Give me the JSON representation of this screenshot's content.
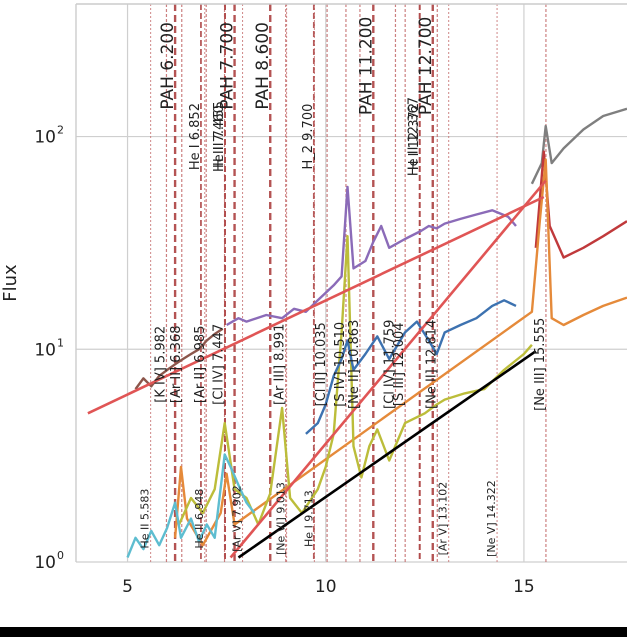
{
  "chart_data": {
    "type": "line",
    "title": "",
    "xlabel": "",
    "ylabel": "Flux",
    "yscale": "log",
    "xlim": [
      3.7,
      17.6
    ],
    "ylim": [
      1,
      420
    ],
    "grid": true,
    "x_ticks": [
      5,
      10,
      15
    ],
    "x_tick_labels": [
      "5",
      "10",
      "15"
    ],
    "y_ticks": [
      1,
      10,
      100
    ],
    "y_tick_labels": [
      "10",
      "10",
      "10"
    ],
    "y_tick_exponents": [
      "0",
      "1",
      "2"
    ],
    "colors": {
      "gray": "#7f7f7f",
      "red": "#c0393b",
      "orange": "#e58a3a",
      "purple": "#8b6bb8",
      "olive": "#bcbd3a",
      "blue": "#3d72b0",
      "cyan": "#5ebdd0",
      "brown": "#8c564b",
      "fit": "#e05555",
      "black": "#000000",
      "pah_line": "#b04a4a",
      "fine_line": "#c46a6a"
    },
    "series": [
      {
        "key": "gray",
        "color_key": "gray",
        "points": [
          [
            15.2,
            60
          ],
          [
            15.45,
            75
          ],
          [
            15.55,
            112
          ],
          [
            15.7,
            75
          ],
          [
            16.0,
            88
          ],
          [
            16.5,
            108
          ],
          [
            17.0,
            125
          ],
          [
            17.6,
            135
          ]
        ]
      },
      {
        "key": "red",
        "color_key": "red",
        "points": [
          [
            15.3,
            30
          ],
          [
            15.5,
            85
          ],
          [
            15.65,
            38
          ],
          [
            16.0,
            27
          ],
          [
            16.5,
            30
          ],
          [
            17.0,
            34
          ],
          [
            17.6,
            40
          ]
        ]
      },
      {
        "key": "orange",
        "color_key": "orange",
        "points": [
          [
            6.2,
            1.3
          ],
          [
            6.35,
            2.8
          ],
          [
            6.5,
            1.6
          ],
          [
            6.9,
            1.2
          ],
          [
            7.35,
            1.7
          ],
          [
            7.5,
            2.6
          ],
          [
            7.7,
            1.5
          ],
          [
            15.2,
            15
          ],
          [
            15.4,
            40
          ],
          [
            15.55,
            78
          ],
          [
            15.7,
            14
          ],
          [
            16.0,
            13
          ],
          [
            16.5,
            14.5
          ],
          [
            17.0,
            16
          ],
          [
            17.6,
            17.5
          ]
        ]
      },
      {
        "key": "purple",
        "color_key": "purple",
        "points": [
          [
            7.5,
            13
          ],
          [
            7.8,
            14
          ],
          [
            8.0,
            13.5
          ],
          [
            8.5,
            14.5
          ],
          [
            8.9,
            14
          ],
          [
            9.2,
            15.5
          ],
          [
            9.5,
            15
          ],
          [
            9.8,
            17
          ],
          [
            10.2,
            20
          ],
          [
            10.4,
            22
          ],
          [
            10.55,
            58
          ],
          [
            10.7,
            24
          ],
          [
            11.0,
            26
          ],
          [
            11.2,
            32
          ],
          [
            11.4,
            38
          ],
          [
            11.6,
            30
          ],
          [
            12.0,
            33
          ],
          [
            12.4,
            36
          ],
          [
            12.6,
            38
          ],
          [
            12.8,
            37
          ],
          [
            13.0,
            39
          ],
          [
            13.4,
            41
          ],
          [
            13.8,
            43
          ],
          [
            14.2,
            45
          ],
          [
            14.6,
            42
          ],
          [
            14.8,
            38
          ]
        ]
      },
      {
        "key": "olive",
        "color_key": "olive",
        "points": [
          [
            6.3,
            1.5
          ],
          [
            6.6,
            2.0
          ],
          [
            6.9,
            1.7
          ],
          [
            7.2,
            2.2
          ],
          [
            7.45,
            4.5
          ],
          [
            7.7,
            2.2
          ],
          [
            8.0,
            2.0
          ],
          [
            8.3,
            1.5
          ],
          [
            8.6,
            2.1
          ],
          [
            8.9,
            5.3
          ],
          [
            9.1,
            2.0
          ],
          [
            9.4,
            1.7
          ],
          [
            9.8,
            2.2
          ],
          [
            10.0,
            2.8
          ],
          [
            10.2,
            4.0
          ],
          [
            10.4,
            12
          ],
          [
            10.55,
            34
          ],
          [
            10.7,
            3.5
          ],
          [
            10.9,
            2.5
          ],
          [
            11.1,
            3.5
          ],
          [
            11.3,
            4.2
          ],
          [
            11.6,
            3.0
          ],
          [
            12.0,
            4.5
          ],
          [
            12.5,
            5.0
          ],
          [
            12.8,
            5.5
          ],
          [
            13.0,
            5.8
          ],
          [
            13.5,
            6.2
          ],
          [
            14.0,
            6.5
          ],
          [
            14.5,
            8.0
          ],
          [
            15.0,
            9.5
          ],
          [
            15.2,
            10.5
          ]
        ]
      },
      {
        "key": "blue",
        "color_key": "blue",
        "points": [
          [
            9.5,
            4.0
          ],
          [
            9.8,
            4.5
          ],
          [
            10.0,
            5.5
          ],
          [
            10.2,
            7.5
          ],
          [
            10.4,
            9.0
          ],
          [
            10.55,
            11
          ],
          [
            10.7,
            8.0
          ],
          [
            11.0,
            9.5
          ],
          [
            11.3,
            11.5
          ],
          [
            11.6,
            9.0
          ],
          [
            12.0,
            12
          ],
          [
            12.3,
            13.5
          ],
          [
            12.6,
            11
          ],
          [
            12.8,
            9.5
          ],
          [
            13.0,
            12
          ],
          [
            13.4,
            13
          ],
          [
            13.8,
            14
          ],
          [
            14.2,
            16
          ],
          [
            14.5,
            17
          ],
          [
            14.8,
            16
          ]
        ]
      },
      {
        "key": "cyan",
        "color_key": "cyan",
        "points": [
          [
            5.0,
            1.05
          ],
          [
            5.2,
            1.3
          ],
          [
            5.4,
            1.15
          ],
          [
            5.6,
            1.4
          ],
          [
            5.8,
            1.2
          ],
          [
            6.0,
            1.45
          ],
          [
            6.2,
            1.9
          ],
          [
            6.35,
            1.3
          ],
          [
            6.6,
            1.6
          ],
          [
            6.8,
            1.25
          ],
          [
            7.0,
            1.5
          ],
          [
            7.2,
            1.3
          ],
          [
            7.45,
            3.2
          ],
          [
            7.6,
            2.8
          ],
          [
            7.8,
            2.3
          ],
          [
            8.0,
            1.9
          ],
          [
            8.2,
            1.7
          ]
        ]
      },
      {
        "key": "brown",
        "color_key": "brown",
        "points": [
          [
            5.2,
            6.5
          ],
          [
            5.4,
            7.3
          ],
          [
            5.6,
            6.7
          ],
          [
            5.8,
            7.5
          ],
          [
            6.0,
            8.0
          ],
          [
            6.2,
            8.5
          ],
          [
            6.4,
            9.0
          ],
          [
            6.6,
            9.5
          ],
          [
            6.8,
            10
          ],
          [
            7.0,
            11
          ],
          [
            7.2,
            11.8
          ],
          [
            7.4,
            12.5
          ]
        ]
      }
    ],
    "fits": [
      {
        "key": "fit-upper",
        "color_key": "fit",
        "points": [
          [
            4.0,
            5.0
          ],
          [
            15.5,
            52
          ]
        ]
      },
      {
        "key": "fit-lower",
        "color_key": "fit",
        "points": [
          [
            7.6,
            1.05
          ],
          [
            15.55,
            62
          ]
        ]
      },
      {
        "key": "fit-black",
        "color_key": "black",
        "points": [
          [
            7.8,
            1.05
          ],
          [
            15.3,
            9.8
          ]
        ]
      }
    ],
    "pah_lines": [
      {
        "x": 6.2,
        "label": "PAH 6.200",
        "y": 215
      },
      {
        "x": 7.7,
        "label": "PAH 7.700",
        "y": 215
      },
      {
        "x": 8.6,
        "label": "PAH 8.600",
        "y": 215
      },
      {
        "x": 11.2,
        "label": "PAH 11.200",
        "y": 215
      },
      {
        "x": 12.7,
        "label": "PAH 12.700",
        "y": 215
      }
    ],
    "mid_lines": [
      {
        "x": 6.852,
        "label": "He I 6.852",
        "y": 100
      },
      {
        "x": 7.46,
        "label": "H II 7.460",
        "y": 100
      },
      {
        "x": 7.46,
        "label": "He II 7.455",
        "y": 100
      },
      {
        "x": 9.7,
        "label": "H_2 9.700",
        "y": 100
      },
      {
        "x": 12.37,
        "label": "He II 12.367",
        "y": 100
      },
      {
        "x": 12.372,
        "label": "H I 12.372",
        "y": 100
      }
    ],
    "low_lines": [
      {
        "x": 5.982,
        "label": "[K IV] 5.982",
        "y": 8.5
      },
      {
        "x": 6.368,
        "label": "[Ar II] 6.368",
        "y": 8.5
      },
      {
        "x": 6.985,
        "label": "[Ar II] 6.985",
        "y": 8.5
      },
      {
        "x": 7.447,
        "label": "[Cl IV] 7.447",
        "y": 8.5
      },
      {
        "x": 8.991,
        "label": "[Ar III] 8.991",
        "y": 8.5
      },
      {
        "x": 10.035,
        "label": "[Cl II] 10.035",
        "y": 8.5
      },
      {
        "x": 10.51,
        "label": "[S IV] 10.510",
        "y": 8.5
      },
      {
        "x": 10.863,
        "label": "[Ne II] 10.863",
        "y": 8.5
      },
      {
        "x": 11.759,
        "label": "[Cl IV] 11.759",
        "y": 8.5
      },
      {
        "x": 12.004,
        "label": "[S III] 12.004",
        "y": 8.5
      },
      {
        "x": 12.814,
        "label": "[Ne II] 12.814",
        "y": 8.5
      },
      {
        "x": 15.555,
        "label": "[Ne III] 15.555",
        "y": 8.5
      }
    ],
    "faint_lines": [
      {
        "x": 5.583,
        "label": "He II 5.583",
        "y": 1.6
      },
      {
        "x": 6.948,
        "label": "He II 6.948",
        "y": 1.6
      },
      {
        "x": 7.902,
        "label": "[Ar V] 7.902",
        "y": 1.6
      },
      {
        "x": 9.013,
        "label": "[Ne VI] 9.013",
        "y": 1.6
      },
      {
        "x": 9.713,
        "label": "He I 9.713",
        "y": 1.6
      },
      {
        "x": 13.102,
        "label": "[Ar V] 13.102",
        "y": 1.6
      },
      {
        "x": 14.322,
        "label": "[Ne V] 14.322",
        "y": 1.6
      }
    ]
  }
}
